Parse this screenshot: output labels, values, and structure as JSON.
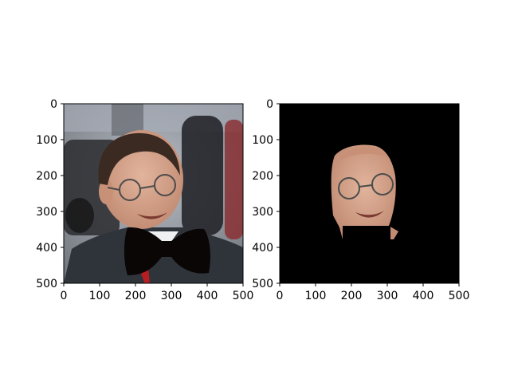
{
  "chart_data": [
    {
      "type": "image",
      "image_content": "photo of a man in a suit and glasses with a cut-out black bow tie pasted over his collar",
      "xlim": [
        0,
        500
      ],
      "ylim": [
        500,
        0
      ],
      "xticks": [
        0,
        100,
        200,
        300,
        400,
        500
      ],
      "yticks": [
        0,
        100,
        200,
        300,
        400,
        500
      ],
      "xticklabels": [
        "0",
        "100",
        "200",
        "300",
        "400",
        "500"
      ],
      "yticklabels": [
        "0",
        "100",
        "200",
        "300",
        "400",
        "500"
      ]
    },
    {
      "type": "image",
      "image_content": "segmentation mask result: only the man's face region kept, rest of image black",
      "xlim": [
        0,
        500
      ],
      "ylim": [
        500,
        0
      ],
      "xticks": [
        0,
        100,
        200,
        300,
        400,
        500
      ],
      "yticks": [
        0,
        100,
        200,
        300,
        400,
        500
      ],
      "xticklabels": [
        "0",
        "100",
        "200",
        "300",
        "400",
        "500"
      ],
      "yticklabels": [
        "0",
        "100",
        "200",
        "300",
        "400",
        "500"
      ]
    }
  ],
  "colors": {
    "axis": "#000000",
    "mask_background": "#000000",
    "bowtie": "#0b0606",
    "background_street": "#8a8f96",
    "suit": "#2f343b",
    "skin": "#d9a990",
    "hair": "#3b2a22"
  }
}
